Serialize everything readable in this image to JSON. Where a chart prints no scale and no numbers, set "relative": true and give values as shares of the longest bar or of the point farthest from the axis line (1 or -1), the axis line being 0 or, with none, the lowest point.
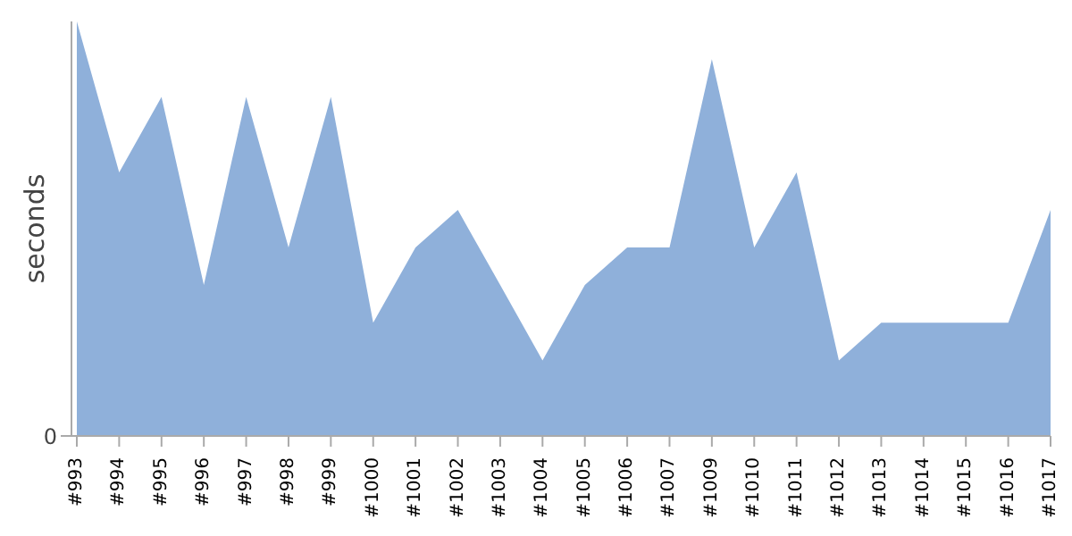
{
  "chart_data": {
    "type": "area",
    "ylabel": "seconds",
    "relative": true,
    "annotations": [
      "0"
    ],
    "categories": [
      "#993",
      "#994",
      "#995",
      "#996",
      "#997",
      "#998",
      "#999",
      "#1000",
      "#1001",
      "#1002",
      "#1003",
      "#1004",
      "#1005",
      "#1006",
      "#1007",
      "#1009",
      "#1010",
      "#1011",
      "#1012",
      "#1013",
      "#1014",
      "#1015",
      "#1016",
      "#1017"
    ],
    "series": [
      {
        "color": "#8fb0da",
        "values": [
          1,
          0.636,
          0.818,
          0.364,
          0.818,
          0.455,
          0.818,
          0.273,
          0.455,
          0.545,
          0.364,
          0.182,
          0.364,
          0.455,
          0.455,
          0.909,
          0.455,
          0.636,
          0.182,
          0.273,
          0.273,
          0.273,
          0.273,
          0.545
        ]
      }
    ],
    "grid": false,
    "legend": false
  }
}
